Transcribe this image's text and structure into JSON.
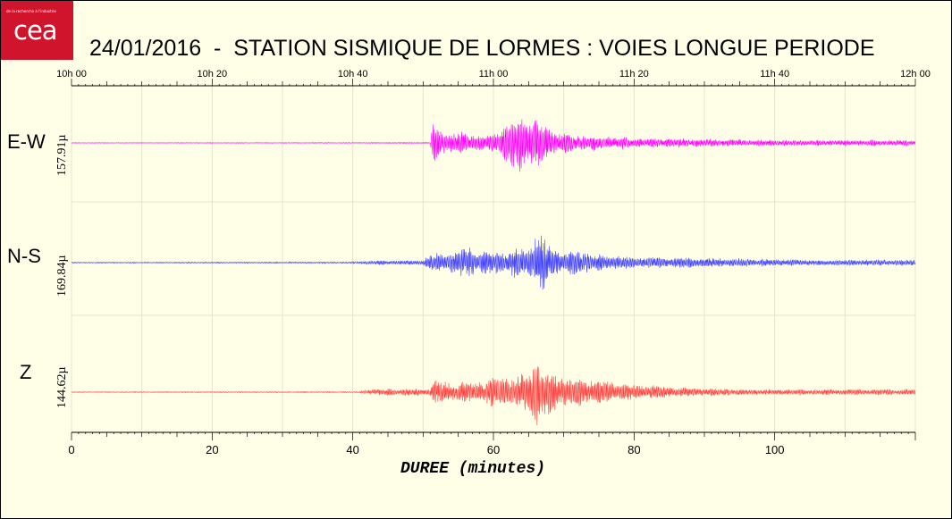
{
  "header": {
    "logo_text": "cea",
    "logo_tagline": "de la recherche à l'industrie",
    "title": "24/01/2016  -  STATION SISMIQUE DE LORMES : VOIES LONGUE PERIODE"
  },
  "chart_data": {
    "type": "line",
    "title": "24/01/2016  -  STATION SISMIQUE DE LORMES : VOIES LONGUE PERIODE",
    "xlabel": "DUREE (minutes)",
    "xlim": [
      0,
      120
    ],
    "x_ticks": [
      0,
      20,
      40,
      60,
      80,
      100
    ],
    "x_ticks_labels": [
      "0",
      "20",
      "40",
      "60",
      "80",
      "100"
    ],
    "top_axis_ticks": [
      "10h 00",
      "10h 20",
      "10h 40",
      "11h 00",
      "11h 20",
      "11h 40",
      "12h 00"
    ],
    "grid": true,
    "series": [
      {
        "name": "E-W",
        "scale_label": "157.91µ",
        "color": "#ff00ff",
        "envelope": [
          [
            0,
            0.3
          ],
          [
            40,
            0.4
          ],
          [
            51,
            0.6
          ],
          [
            51.5,
            22
          ],
          [
            52.3,
            19
          ],
          [
            53.5,
            10
          ],
          [
            56,
            11
          ],
          [
            59,
            8
          ],
          [
            61,
            14
          ],
          [
            62,
            24
          ],
          [
            64,
            30
          ],
          [
            66,
            24
          ],
          [
            68,
            14
          ],
          [
            70,
            11
          ],
          [
            74,
            8
          ],
          [
            80,
            5
          ],
          [
            90,
            4
          ],
          [
            105,
            3
          ],
          [
            120,
            3
          ]
        ]
      },
      {
        "name": "N-S",
        "scale_label": "169.84µ",
        "color": "#4040ff",
        "envelope": [
          [
            0,
            0.5
          ],
          [
            40,
            0.8
          ],
          [
            42,
            2
          ],
          [
            50,
            2.5
          ],
          [
            51,
            10
          ],
          [
            53,
            9
          ],
          [
            56,
            16
          ],
          [
            59,
            12
          ],
          [
            62,
            12
          ],
          [
            65,
            18
          ],
          [
            66,
            34
          ],
          [
            67,
            24
          ],
          [
            69,
            14
          ],
          [
            72,
            12
          ],
          [
            76,
            8
          ],
          [
            80,
            6
          ],
          [
            90,
            5
          ],
          [
            105,
            3
          ],
          [
            120,
            3
          ]
        ]
      },
      {
        "name": "Z",
        "scale_label": "144.62µ",
        "color": "#ff4040",
        "envelope": [
          [
            0,
            0.4
          ],
          [
            41,
            0.6
          ],
          [
            42,
            3
          ],
          [
            51,
            4
          ],
          [
            51.5,
            12
          ],
          [
            54,
            10
          ],
          [
            57,
            10
          ],
          [
            61,
            16
          ],
          [
            64,
            16
          ],
          [
            65.5,
            28
          ],
          [
            66,
            42
          ],
          [
            67,
            26
          ],
          [
            70,
            16
          ],
          [
            74,
            14
          ],
          [
            78,
            9
          ],
          [
            82,
            7
          ],
          [
            86,
            5
          ],
          [
            95,
            3
          ],
          [
            110,
            3
          ],
          [
            120,
            3
          ]
        ]
      }
    ]
  }
}
